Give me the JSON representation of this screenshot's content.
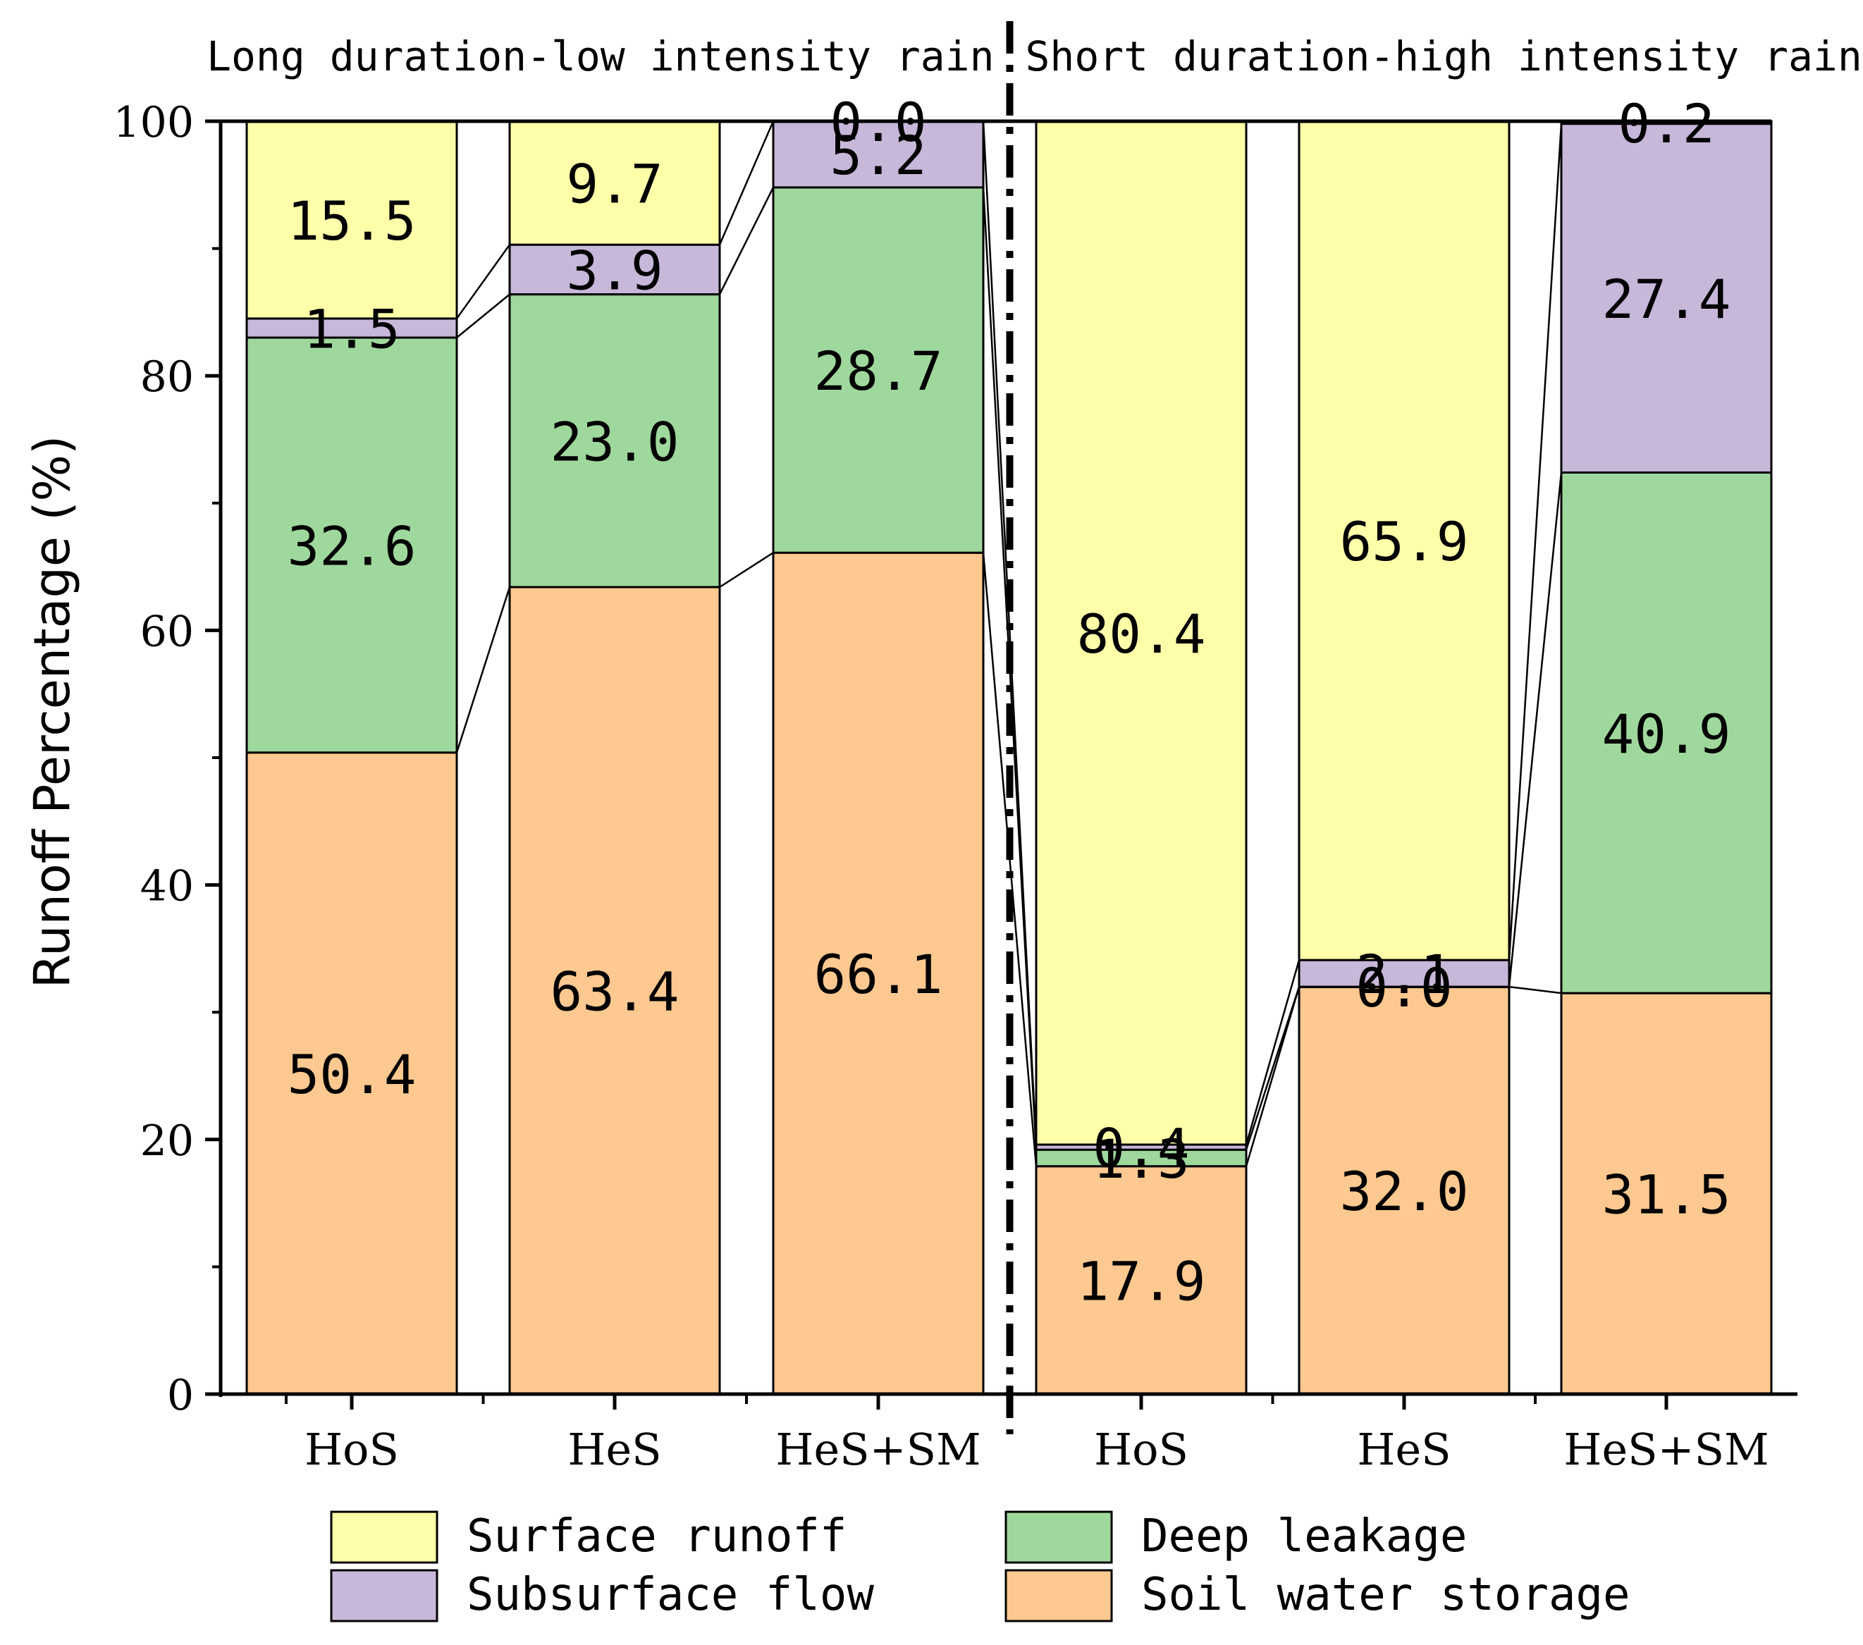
{
  "chart_data": {
    "type": "bar",
    "stacked": true,
    "group_titles": [
      "Long duration-low intensity rain",
      "Short duration-high intensity rain"
    ],
    "categories": [
      "HoS",
      "HeS",
      "HeS+SM",
      "HoS",
      "HeS",
      "HeS+SM"
    ],
    "ylabel": "Runoff Percentage (%)",
    "xlabel": "",
    "ylim": [
      0,
      100
    ],
    "yticks": [
      "0",
      "20",
      "40",
      "60",
      "80",
      "100"
    ],
    "series": [
      {
        "name": "Soil water storage",
        "color": "#FDC990",
        "values": [
          50.4,
          63.4,
          66.1,
          17.9,
          32.0,
          31.5
        ],
        "labels": [
          "50.4",
          "63.4",
          "66.1",
          "17.9",
          "32.0",
          "31.5"
        ]
      },
      {
        "name": "Deep leakage",
        "color": "#9FD89C",
        "values": [
          32.6,
          23.0,
          28.7,
          1.3,
          0.0,
          40.9
        ],
        "labels": [
          "32.6",
          "23.0",
          "28.7",
          "1.3",
          "0.0",
          "40.9"
        ]
      },
      {
        "name": "Subsurface flow",
        "color": "#C7B7D9",
        "values": [
          1.5,
          3.9,
          5.2,
          0.4,
          2.1,
          27.4
        ],
        "labels": [
          "1.5",
          "3.9",
          "5.2",
          "0.4",
          "2.1",
          "27.4"
        ]
      },
      {
        "name": "Surface runoff",
        "color": "#FFFFAA",
        "values": [
          15.5,
          9.7,
          0.0,
          80.4,
          65.9,
          0.2
        ],
        "labels": [
          "15.5",
          "9.7",
          "0.0",
          "80.4",
          "65.9",
          "0.2"
        ]
      }
    ],
    "legend": {
      "placement": "bottom",
      "order": [
        "Surface runoff",
        "Deep leakage",
        "Subsurface flow",
        "Soil water storage"
      ]
    },
    "grid": false
  }
}
